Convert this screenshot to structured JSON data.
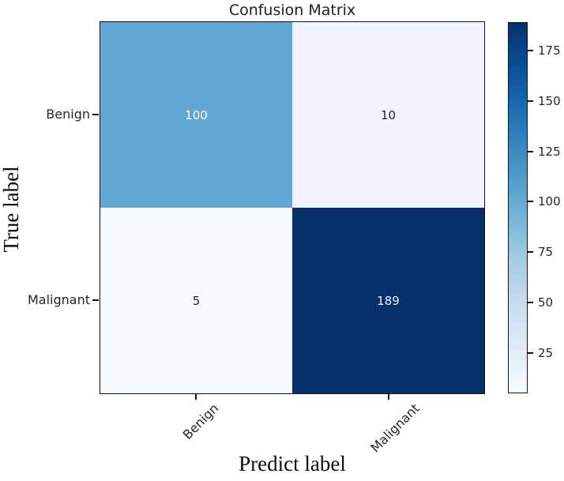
{
  "chart_data": {
    "type": "heatmap",
    "title": "Confusion Matrix",
    "xlabel": "Predict label",
    "ylabel": "True label",
    "x_categories": [
      "Benign",
      "Malignant"
    ],
    "y_categories": [
      "Benign",
      "Malignant"
    ],
    "matrix": [
      [
        100,
        10
      ],
      [
        5,
        189
      ]
    ],
    "colormap": "Blues",
    "vmin": 5,
    "vmax": 189,
    "colorbar_ticks": [
      175,
      150,
      125,
      100,
      75,
      50,
      25
    ],
    "cell_colors": [
      [
        "#61a7d2",
        "#eff3fd"
      ],
      [
        "#f6f9fe",
        "#08306b"
      ]
    ],
    "cell_text_colors": [
      [
        "#ffffff",
        "#262626"
      ],
      [
        "#262626",
        "#e9eff8"
      ]
    ],
    "colorbar_gradient": [
      "#f7fbff",
      "#deebf7",
      "#c6dbef",
      "#9ecae1",
      "#6aaed6",
      "#4292c6",
      "#2171b5",
      "#08519c",
      "#08306b"
    ],
    "legend_position": "right",
    "grid": false
  }
}
